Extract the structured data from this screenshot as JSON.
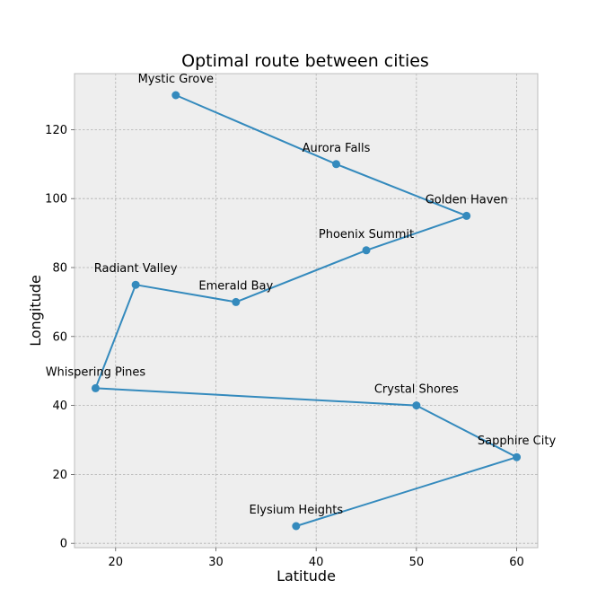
{
  "chart_data": {
    "type": "line",
    "title": "Optimal route between cities",
    "xlabel": "Latitude",
    "ylabel": "Longitude",
    "xlim": [
      15.9,
      62.1
    ],
    "ylim": [
      -1.25,
      136.25
    ],
    "xticks": [
      20,
      30,
      40,
      50,
      60
    ],
    "yticks": [
      0,
      20,
      40,
      60,
      80,
      100,
      120
    ],
    "grid": true,
    "colors": {
      "line": "#348abd",
      "marker": "#348abd",
      "plot_background": "#eeeeee",
      "grid": "#b0b0b0",
      "frame": "#bcbcbc"
    },
    "series": [
      {
        "points": [
          {
            "label": "Mystic Grove",
            "x": 26,
            "y": 130
          },
          {
            "label": "Aurora Falls",
            "x": 42,
            "y": 110
          },
          {
            "label": "Golden Haven",
            "x": 55,
            "y": 95
          },
          {
            "label": "Phoenix Summit",
            "x": 45,
            "y": 85
          },
          {
            "label": "Emerald Bay",
            "x": 32,
            "y": 70
          },
          {
            "label": "Radiant Valley",
            "x": 22,
            "y": 75
          },
          {
            "label": "Whispering Pines",
            "x": 18,
            "y": 45
          },
          {
            "label": "Crystal Shores",
            "x": 50,
            "y": 40
          },
          {
            "label": "Sapphire City",
            "x": 60,
            "y": 25
          },
          {
            "label": "Elysium Heights",
            "x": 38,
            "y": 5
          }
        ]
      }
    ]
  }
}
